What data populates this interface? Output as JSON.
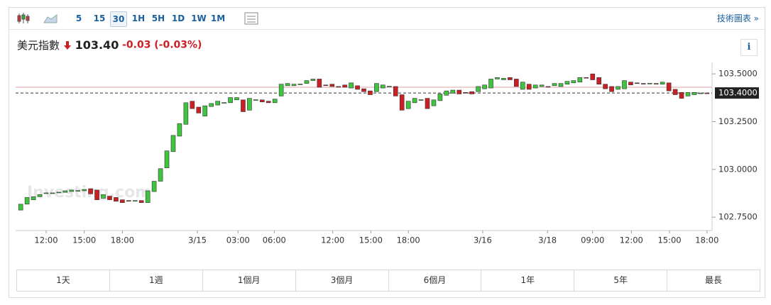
{
  "toolbar": {
    "intervals": [
      "5",
      "15",
      "30",
      "1H",
      "5H",
      "1D",
      "1W",
      "1M"
    ],
    "active_interval": 2,
    "chart_link": "技術圖表 »"
  },
  "header": {
    "name": "美元指數",
    "price": "103.40",
    "change": "-0.03",
    "change_pct": "(-0.03%)",
    "info": "i"
  },
  "chart_data": {
    "type": "candlestick",
    "watermark": "Investing.com",
    "colors": {
      "up": "#3ec43e",
      "down": "#cc1f24"
    },
    "open": [
      102.787,
      102.818,
      102.841,
      102.857,
      102.875,
      102.874,
      102.88,
      102.88,
      102.884,
      102.888,
      102.888,
      102.899,
      102.892,
      102.849,
      102.86,
      102.853,
      102.841,
      102.837,
      102.836,
      102.837,
      102.826,
      102.884,
      102.938,
      103.008,
      103.093,
      103.174,
      103.236,
      103.357,
      103.326,
      103.279,
      103.329,
      103.337,
      103.349,
      103.349,
      103.364,
      103.364,
      103.31,
      103.364,
      103.364,
      103.357,
      103.349,
      103.384,
      103.438,
      103.438,
      103.446,
      103.45,
      103.465,
      103.473,
      103.442,
      103.446,
      103.434,
      103.442,
      103.426,
      103.438,
      103.422,
      103.411,
      103.407,
      103.426,
      103.434,
      103.434,
      103.391,
      103.318,
      103.349,
      103.364,
      103.372,
      103.333,
      103.36,
      103.388,
      103.399,
      103.415,
      103.403,
      103.407,
      103.407,
      103.422,
      103.426,
      103.473,
      103.469,
      103.481,
      103.473,
      103.419,
      103.446,
      103.426,
      103.434,
      103.434,
      103.438,
      103.434,
      103.446,
      103.453,
      103.457,
      103.481,
      103.5,
      103.481,
      103.446,
      103.434,
      103.419,
      103.422,
      103.457,
      103.453,
      103.45,
      103.45,
      103.45,
      103.446,
      103.453,
      103.419,
      103.403,
      103.384,
      103.391,
      103.399,
      103.4
    ],
    "close": [
      102.818,
      102.853,
      102.857,
      102.868,
      102.877,
      102.877,
      102.881,
      102.888,
      102.892,
      102.889,
      102.895,
      102.872,
      102.841,
      102.868,
      102.841,
      102.833,
      102.826,
      102.836,
      102.837,
      102.826,
      102.888,
      102.938,
      103.004,
      103.097,
      103.178,
      103.24,
      103.349,
      103.318,
      103.295,
      103.333,
      103.345,
      103.357,
      103.35,
      103.376,
      103.376,
      103.302,
      103.372,
      103.365,
      103.353,
      103.349,
      103.368,
      103.446,
      103.45,
      103.446,
      103.447,
      103.465,
      103.473,
      103.43,
      103.441,
      103.434,
      103.433,
      103.43,
      103.453,
      103.419,
      103.407,
      103.391,
      103.45,
      103.442,
      103.435,
      103.384,
      103.31,
      103.357,
      103.372,
      103.365,
      103.318,
      103.364,
      103.395,
      103.411,
      103.415,
      103.395,
      103.402,
      103.395,
      103.434,
      103.442,
      103.473,
      103.481,
      103.477,
      103.469,
      103.434,
      103.457,
      103.419,
      103.442,
      103.442,
      103.433,
      103.45,
      103.45,
      103.461,
      103.465,
      103.481,
      103.48,
      103.469,
      103.446,
      103.422,
      103.407,
      103.434,
      103.465,
      103.442,
      103.452,
      103.449,
      103.451,
      103.449,
      103.457,
      103.411,
      103.391,
      103.372,
      103.403,
      103.403,
      103.4,
      103.399
    ],
    "ylim": [
      102.68,
      103.56
    ],
    "xlim": [
      -0.8,
      108.8
    ],
    "yticks": [
      {
        "value": 103.5,
        "label": "103.5000"
      },
      {
        "value": 103.25,
        "label": "103.2500"
      },
      {
        "value": 103.0,
        "label": "103.0000"
      },
      {
        "value": 102.75,
        "label": "102.7500"
      }
    ],
    "current_price": {
      "value": 103.4,
      "label": "103.4000"
    },
    "previous_close": 103.43,
    "xticks": [
      {
        "value": 4,
        "label": "12:00"
      },
      {
        "value": 10,
        "label": "15:00"
      },
      {
        "value": 16,
        "label": "18:00"
      },
      {
        "value": 27.8,
        "label": "3/15"
      },
      {
        "value": 34.2,
        "label": "03:00"
      },
      {
        "value": 39.9,
        "label": "06:00"
      },
      {
        "value": 49.1,
        "label": "12:00"
      },
      {
        "value": 55.1,
        "label": "15:00"
      },
      {
        "value": 61,
        "label": "18:00"
      },
      {
        "value": 72.7,
        "label": "3/16"
      },
      {
        "value": 82.9,
        "label": "3/18"
      },
      {
        "value": 90,
        "label": "09:00"
      },
      {
        "value": 96.1,
        "label": "12:00"
      },
      {
        "value": 102.1,
        "label": "15:00"
      },
      {
        "value": 108,
        "label": "18:00"
      }
    ]
  },
  "ranges": [
    "1天",
    "1週",
    "1個月",
    "3個月",
    "6個月",
    "1年",
    "5年",
    "最長"
  ]
}
